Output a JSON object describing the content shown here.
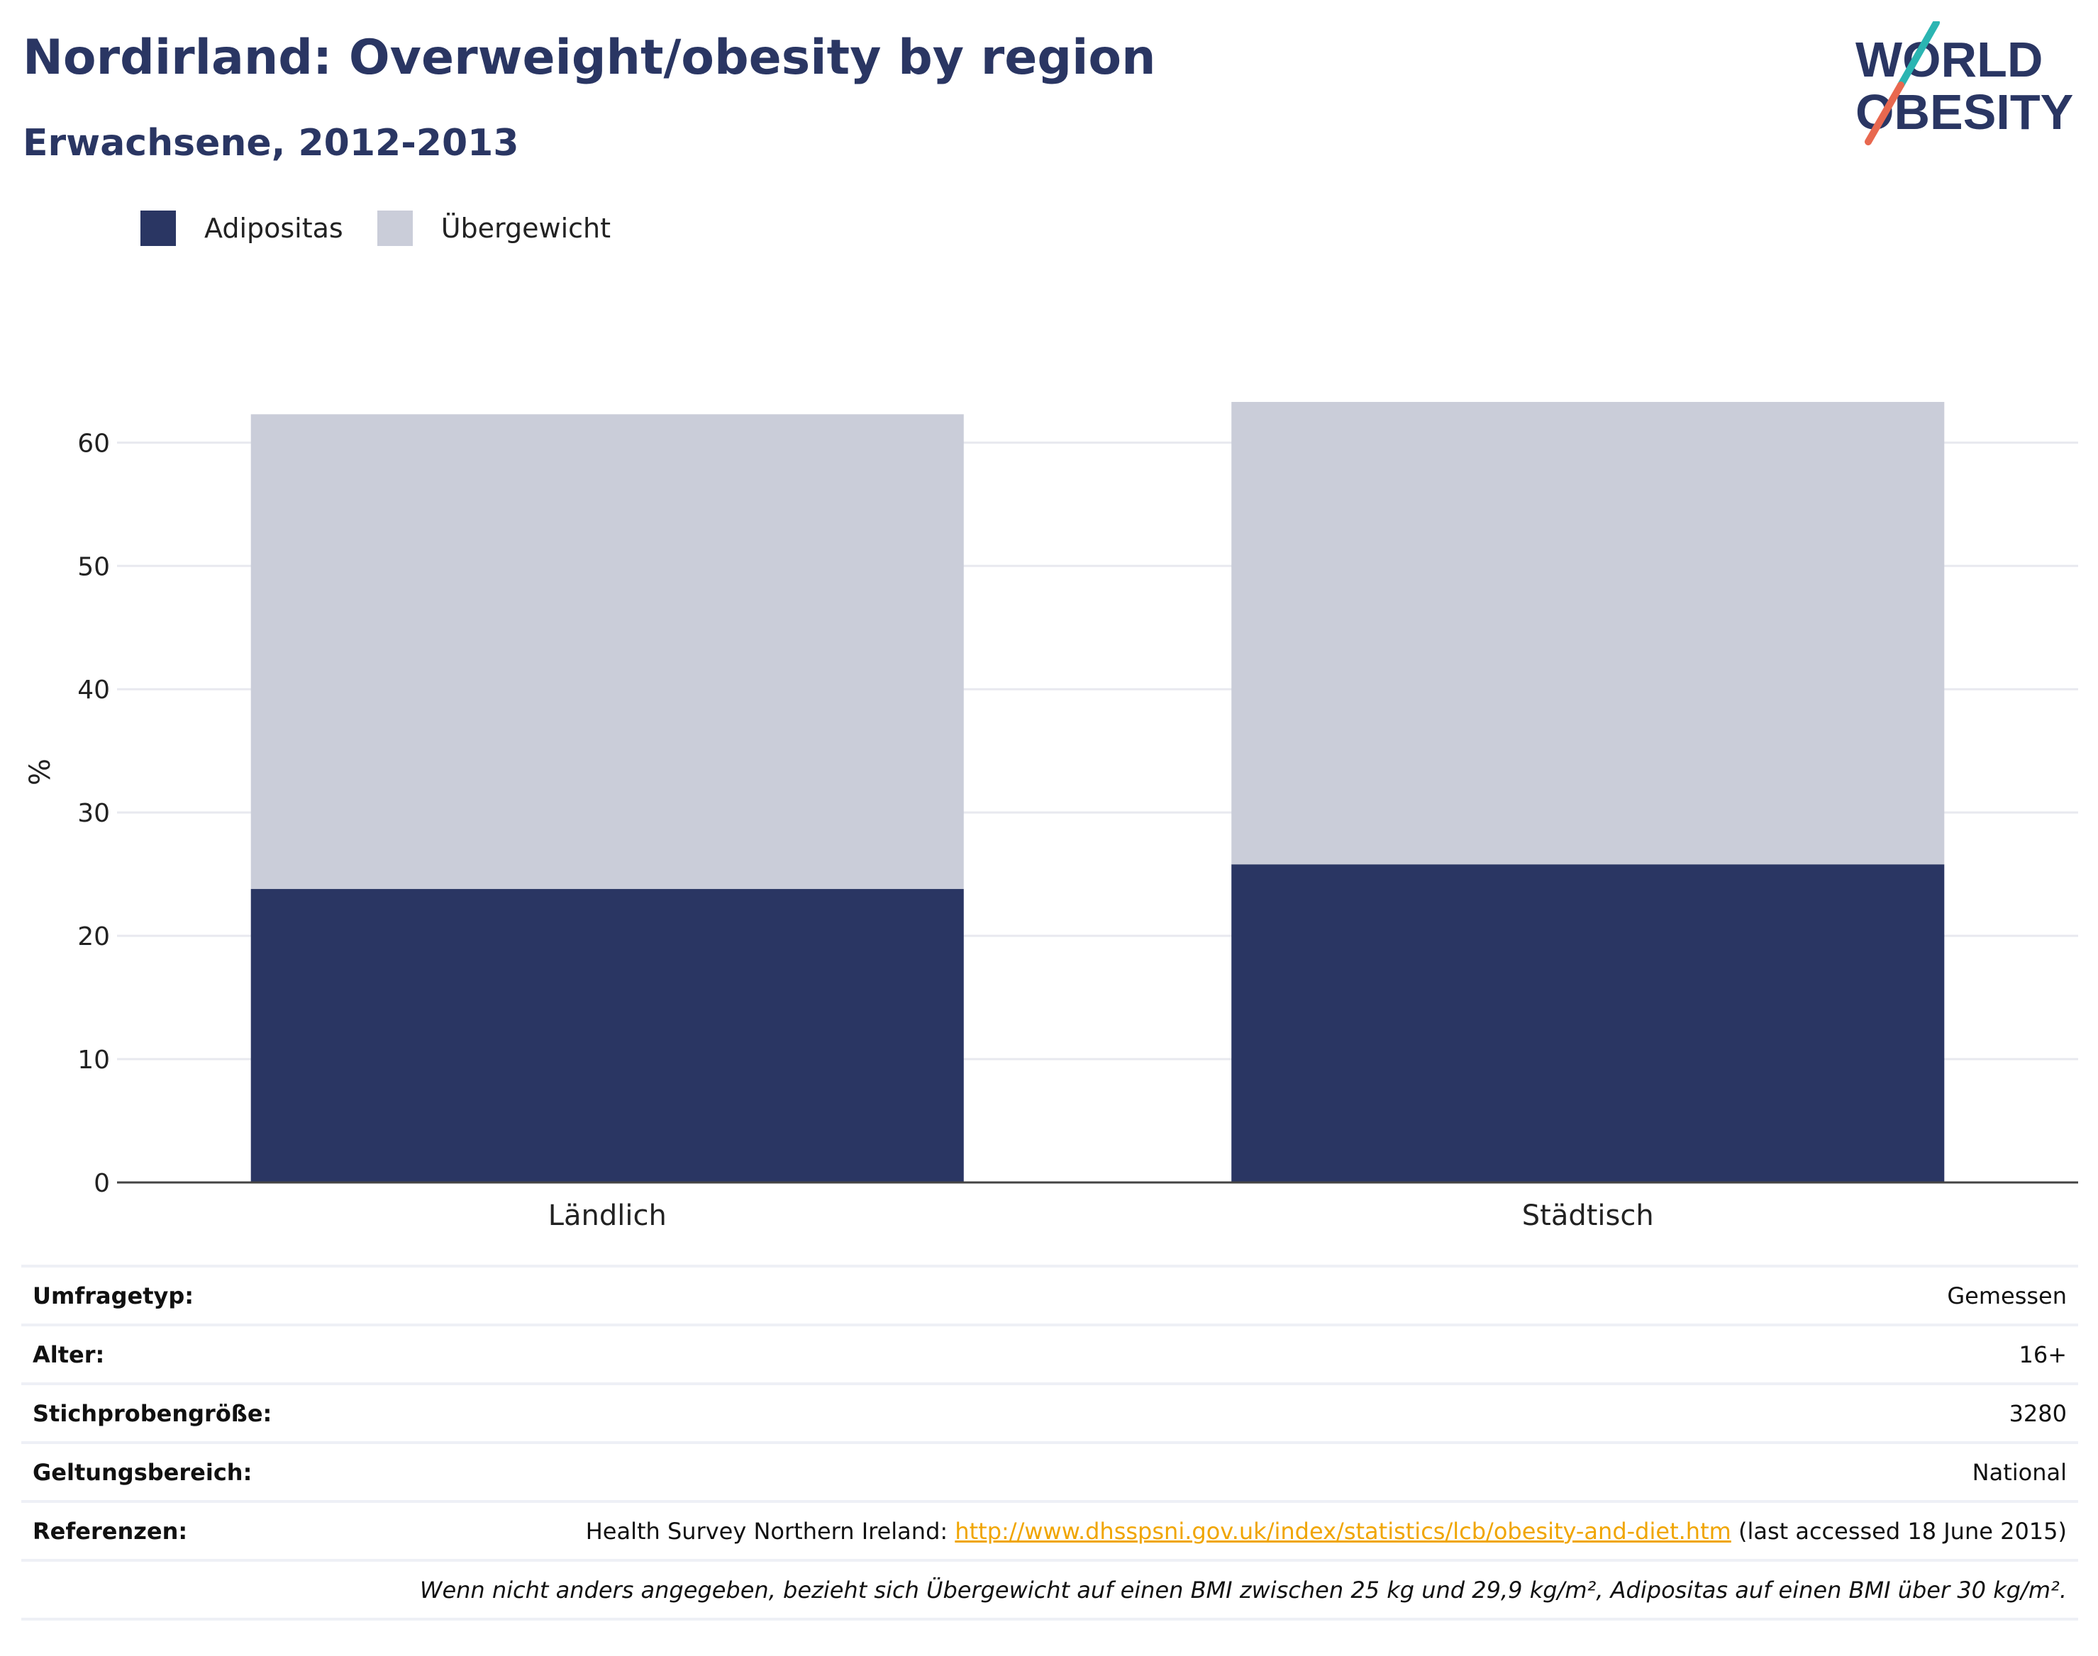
{
  "header": {
    "title": "Nordirland: Overweight/obesity by region",
    "subtitle": "Erwachsene, 2012-2013"
  },
  "logo": {
    "line1": "WORLD",
    "line2": "OBESITY",
    "colors": {
      "text": "#2a3663",
      "slash_top": "#2bb5b2",
      "slash_bottom": "#e8684f"
    }
  },
  "chart_data": {
    "type": "bar",
    "stacked": true,
    "categories": [
      "Ländlich",
      "Städtisch"
    ],
    "series": [
      {
        "name": "Adipositas",
        "values": [
          23.8,
          25.8
        ],
        "color": "#2a3663"
      },
      {
        "name": "Übergewicht",
        "values": [
          38.5,
          37.5
        ],
        "color": "#cacdd9"
      }
    ],
    "ylabel": "%",
    "yticks": [
      "0",
      "10",
      "20",
      "30",
      "40",
      "50",
      "60"
    ],
    "ylim": [
      0,
      66
    ],
    "grid": true,
    "legend_position": "top-left"
  },
  "info": {
    "rows": [
      {
        "label": "Umfragetyp:",
        "value": "Gemessen"
      },
      {
        "label": "Alter:",
        "value": "16+"
      },
      {
        "label": "Stichprobengröße:",
        "value": "3280"
      },
      {
        "label": "Geltungsbereich:",
        "value": "National"
      }
    ],
    "references": {
      "label": "Referenzen:",
      "prefix": "Health Survey Northern Ireland: ",
      "link": "http://www.dhsspsni.gov.uk/index/statistics/lcb/obesity-and-diet.htm",
      "suffix": " (last accessed 18 June 2015)"
    },
    "note": "Wenn nicht anders angegeben, bezieht sich Übergewicht auf einen BMI zwischen 25 kg und 29,9 kg/m², Adipositas auf einen BMI über 30 kg/m²."
  }
}
